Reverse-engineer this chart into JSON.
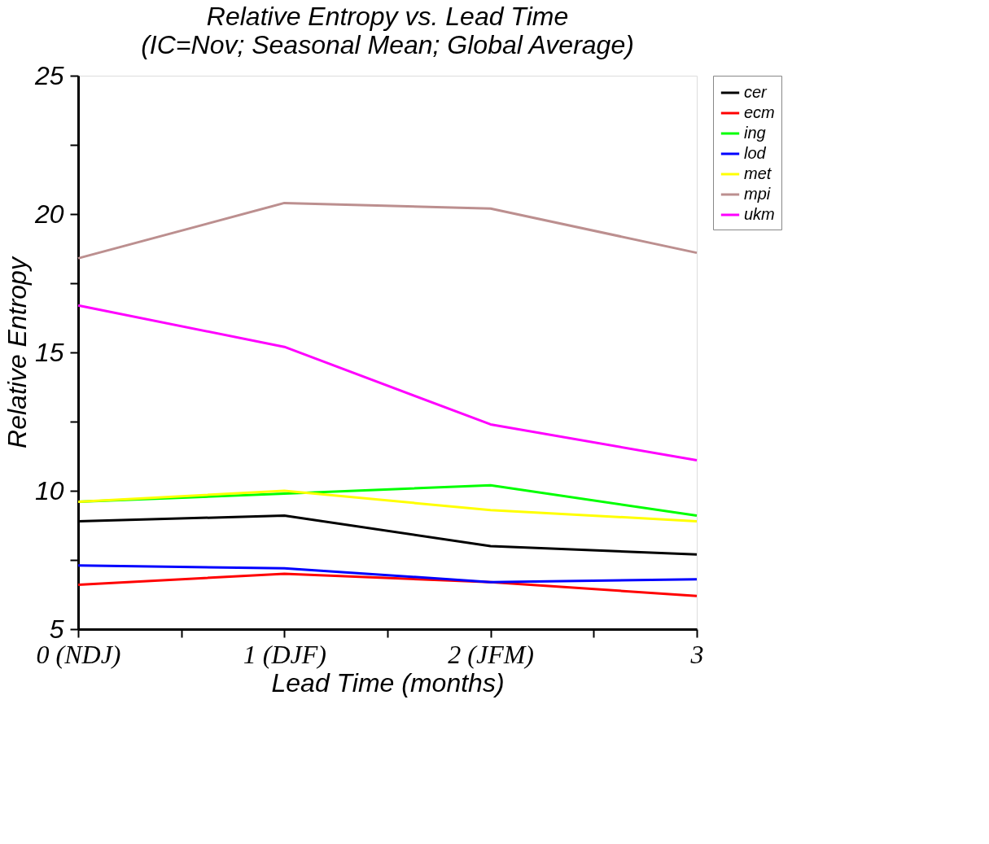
{
  "chart_data": {
    "type": "line",
    "title": "Relative Entropy vs. Lead Time",
    "subtitle": "(IC=Nov; Seasonal Mean; Global Average)",
    "xlabel": "Lead Time (months)",
    "ylabel": "Relative Entropy",
    "x": [
      0,
      1,
      2,
      3
    ],
    "xlim": [
      0,
      3
    ],
    "xticks": [
      {
        "value": 0,
        "label": "0 (NDJ)"
      },
      {
        "value": 0.5,
        "label": null
      },
      {
        "value": 1,
        "label": "1 (DJF)"
      },
      {
        "value": 1.5,
        "label": null
      },
      {
        "value": 2,
        "label": "2 (JFM)"
      },
      {
        "value": 2.5,
        "label": null
      },
      3
    ],
    "ylim": [
      5,
      25
    ],
    "yticks": [
      5,
      {
        "value": 7.5,
        "label": null
      },
      10,
      {
        "value": 12.5,
        "label": null
      },
      15,
      {
        "value": 17.5,
        "label": null
      },
      20,
      {
        "value": 22.5,
        "label": null
      },
      25
    ],
    "grid": false,
    "legend": "top right",
    "marker": "none",
    "line_style": "solid",
    "series": [
      {
        "name": "cer",
        "color": "#000000",
        "values": [
          8.9,
          9.1,
          8.0,
          7.7
        ]
      },
      {
        "name": "ecm",
        "color": "#ff0000",
        "values": [
          6.6,
          7.0,
          6.7,
          6.2
        ]
      },
      {
        "name": "ing",
        "color": "#00ff00",
        "values": [
          9.6,
          9.9,
          10.2,
          9.1
        ]
      },
      {
        "name": "lod",
        "color": "#0000ff",
        "values": [
          7.3,
          7.2,
          6.7,
          6.8
        ]
      },
      {
        "name": "met",
        "color": "#ffff00",
        "values": [
          9.6,
          10.0,
          9.3,
          8.9
        ]
      },
      {
        "name": "mpi",
        "color": "#bc8f8f",
        "values": [
          18.4,
          20.4,
          20.2,
          18.6
        ]
      },
      {
        "name": "ukm",
        "color": "#ff00ff",
        "values": [
          16.7,
          15.2,
          12.4,
          11.1
        ]
      }
    ]
  }
}
